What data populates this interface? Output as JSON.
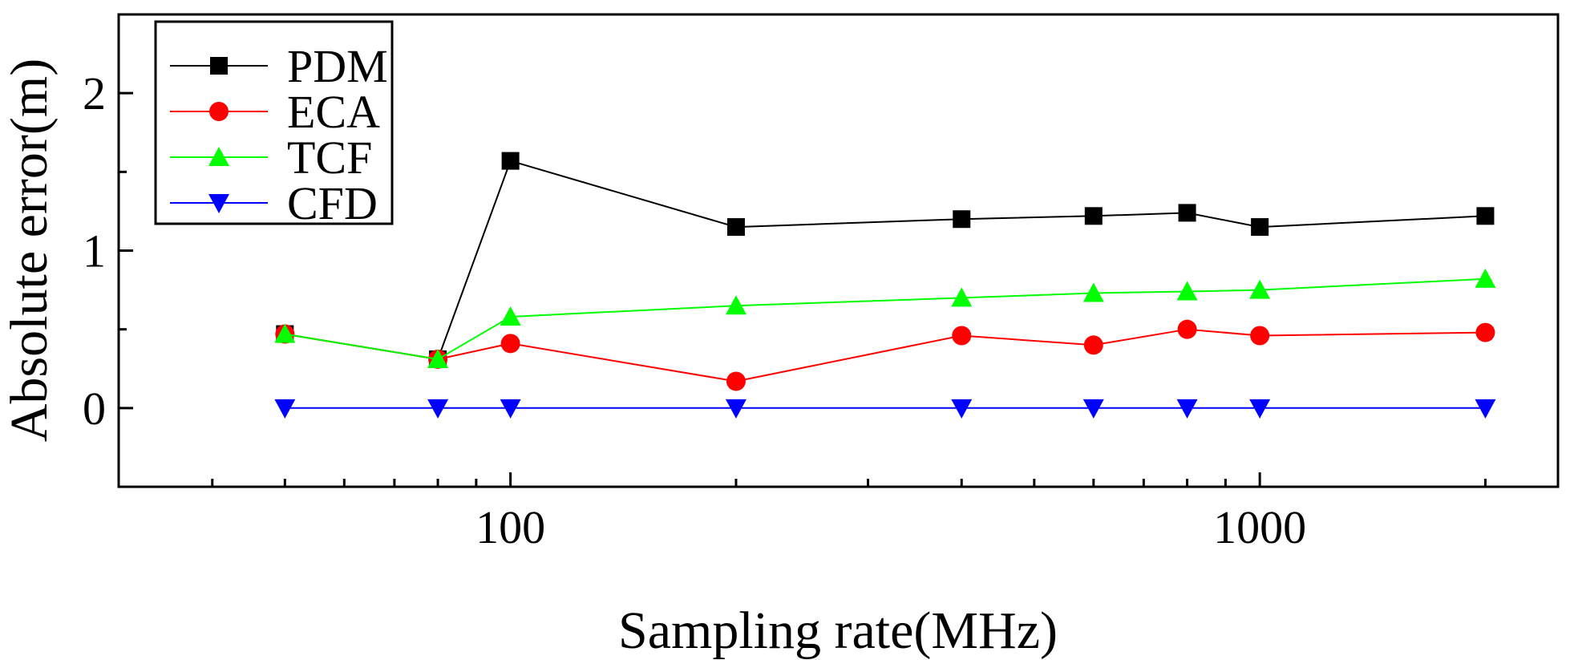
{
  "chart_data": {
    "type": "line",
    "xlabel": "Sampling rate(MHz)",
    "ylabel": "Absolute error(m)",
    "xscale": "log",
    "xlim": [
      30,
      2500
    ],
    "ylim": [
      -0.5,
      2.5
    ],
    "x_tick_labels": [
      {
        "value": 100,
        "label": "100"
      },
      {
        "value": 1000,
        "label": "1000"
      }
    ],
    "y_tick_labels": [
      {
        "value": 0,
        "label": "0"
      },
      {
        "value": 1,
        "label": "1"
      },
      {
        "value": 2,
        "label": "2"
      }
    ],
    "x": [
      50,
      80,
      100,
      200,
      400,
      600,
      800,
      1000,
      2000
    ],
    "legend_position": "top-left",
    "series": [
      {
        "name": "PDM",
        "color": "#000000",
        "marker": "square",
        "values": [
          0.47,
          0.31,
          1.57,
          1.15,
          1.2,
          1.22,
          1.24,
          1.15,
          1.22
        ]
      },
      {
        "name": "ECA",
        "color": "#ff0000",
        "marker": "circle",
        "values": [
          0.47,
          0.31,
          0.41,
          0.17,
          0.46,
          0.4,
          0.5,
          0.46,
          0.48
        ]
      },
      {
        "name": "TCF",
        "color": "#00ff00",
        "marker": "triangle-up",
        "values": [
          0.47,
          0.31,
          0.58,
          0.65,
          0.7,
          0.73,
          0.74,
          0.75,
          0.82
        ]
      },
      {
        "name": "CFD",
        "color": "#0000ff",
        "marker": "triangle-down",
        "values": [
          0,
          0,
          0,
          0,
          0,
          0,
          0,
          0,
          0
        ]
      }
    ]
  }
}
